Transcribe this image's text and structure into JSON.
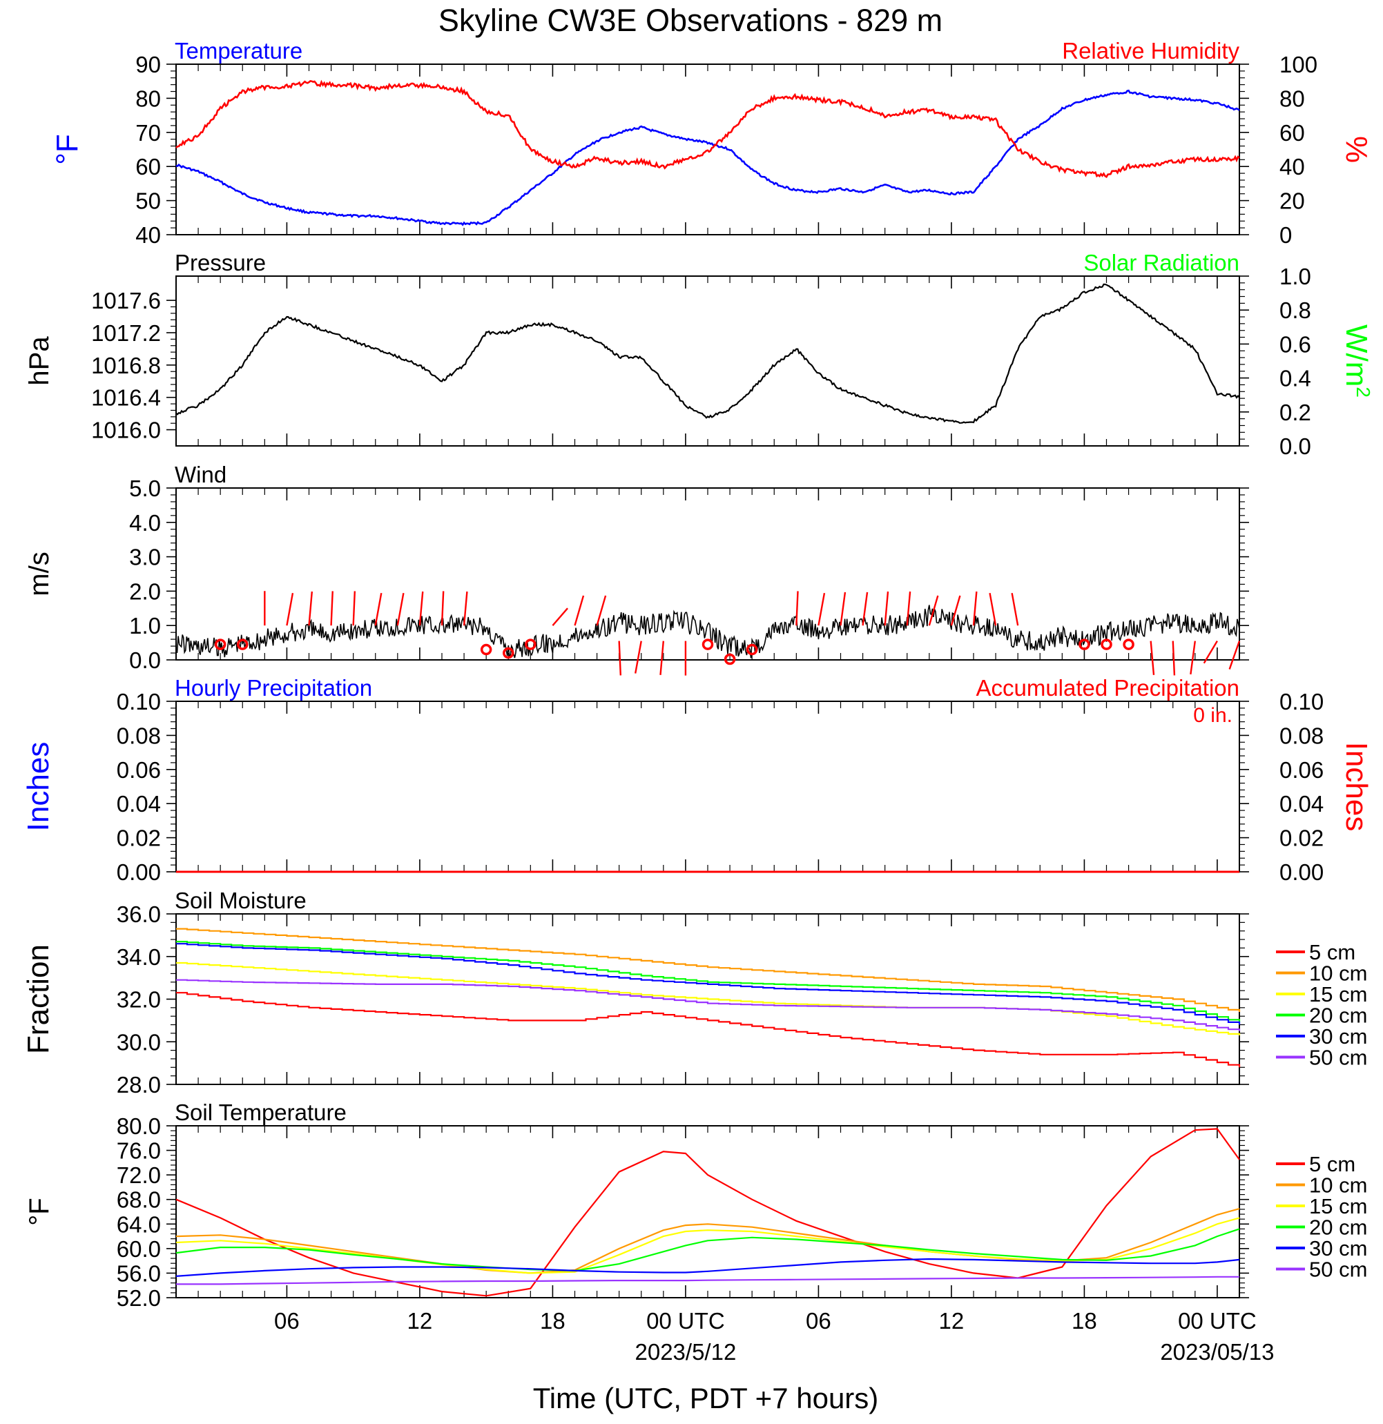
{
  "figure": {
    "title": "Skyline CW3E Observations - 829 m",
    "xlabel": "Time (UTC, PDT +7 hours)",
    "x_ticks": [
      {
        "hour": 6,
        "label": "06"
      },
      {
        "hour": 12,
        "label": "12"
      },
      {
        "hour": 18,
        "label": "18"
      },
      {
        "hour": 24,
        "label": "00 UTC"
      },
      {
        "hour": 30,
        "label": "06"
      },
      {
        "hour": 36,
        "label": "12"
      },
      {
        "hour": 42,
        "label": "18"
      },
      {
        "hour": 48,
        "label": "00 UTC"
      }
    ],
    "x_date_labels": [
      {
        "hour": 24,
        "label": "2023/5/12"
      },
      {
        "hour": 48,
        "label": "2023/05/13"
      }
    ],
    "x_range_hours": [
      1,
      49
    ]
  },
  "colors": {
    "temperature": "#0000ff",
    "humidity": "#ff0000",
    "pressure": "#000000",
    "solar": "#00ff00",
    "wind": "#000000",
    "wind_barb": "#ff0000",
    "hourly_precip": "#0000ff",
    "accum_precip": "#ff0000",
    "depths": [
      "#ff0000",
      "#ff9900",
      "#ffff00",
      "#00ff00",
      "#0000ff",
      "#9933ff"
    ]
  },
  "chart_data": [
    {
      "type": "line",
      "title_left": "Temperature",
      "title_right": "Relative Humidity",
      "ylabel_left": "°F",
      "ylabel_right": "%",
      "ylim_left": [
        40,
        90
      ],
      "ylim_right": [
        0,
        100
      ],
      "yticks_left": [
        "40",
        "50",
        "60",
        "70",
        "80",
        "90"
      ],
      "yticks_right": [
        "0",
        "20",
        "40",
        "60",
        "80",
        "100"
      ],
      "x_hours": [
        1,
        2,
        3,
        4,
        5,
        6,
        7,
        8,
        9,
        10,
        11,
        12,
        13,
        14,
        15,
        16,
        17,
        18,
        19,
        20,
        21,
        22,
        23,
        24,
        25,
        26,
        27,
        28,
        29,
        30,
        31,
        32,
        33,
        34,
        35,
        36,
        37,
        38,
        39,
        40,
        41,
        42,
        43,
        44,
        45,
        46,
        47,
        48,
        49
      ],
      "series": [
        {
          "name": "Temperature",
          "axis": "left",
          "values": [
            60.5,
            58.5,
            55.5,
            52,
            49.5,
            47.8,
            46.5,
            46,
            45.5,
            45.5,
            44.8,
            44,
            43.3,
            43.2,
            43.5,
            48,
            53,
            58,
            63.5,
            67.5,
            70,
            71.5,
            69.5,
            68,
            67,
            65,
            59,
            55,
            53,
            52.5,
            53.5,
            52.5,
            54.5,
            52.5,
            53,
            52,
            52.5,
            60,
            68,
            72,
            77,
            79.5,
            81,
            82,
            80.5,
            80,
            79.5,
            78.5,
            76.5
          ]
        },
        {
          "name": "Relative Humidity",
          "axis": "right",
          "values": [
            52,
            58,
            74,
            84,
            86.5,
            87,
            89,
            88,
            87.5,
            86,
            87.5,
            87.5,
            86.5,
            84,
            72,
            70,
            50,
            43,
            40,
            45,
            42,
            43,
            40,
            44,
            49,
            60,
            74,
            80,
            81,
            79,
            78,
            75,
            70,
            72,
            73,
            69,
            69,
            67,
            50,
            43,
            38,
            36,
            35,
            40,
            41,
            43,
            44,
            44,
            45
          ]
        }
      ]
    },
    {
      "type": "line",
      "title_left": "Pressure",
      "title_right": "Solar Radiation",
      "ylabel_left": "hPa",
      "ylabel_right": "W/m",
      "ylabel_right_sup": "2",
      "ylim_left": [
        1015.8,
        1017.9
      ],
      "ylim_right": [
        0,
        1
      ],
      "yticks_left": [
        "1016.0",
        "1016.4",
        "1016.8",
        "1017.2",
        "1017.6"
      ],
      "yticks_right": [
        "0.0",
        "0.2",
        "0.4",
        "0.6",
        "0.8",
        "1.0"
      ],
      "x_hours": [
        1,
        2,
        3,
        4,
        5,
        6,
        7,
        8,
        9,
        10,
        11,
        12,
        13,
        14,
        15,
        16,
        17,
        18,
        19,
        20,
        21,
        22,
        23,
        24,
        25,
        26,
        27,
        28,
        29,
        30,
        31,
        32,
        33,
        34,
        35,
        36,
        37,
        38,
        39,
        40,
        41,
        42,
        43,
        44,
        45,
        46,
        47,
        48,
        49
      ],
      "series": [
        {
          "name": "Pressure",
          "axis": "left",
          "values": [
            1016.2,
            1016.3,
            1016.5,
            1016.8,
            1017.2,
            1017.4,
            1017.3,
            1017.2,
            1017.1,
            1017.0,
            1016.9,
            1016.8,
            1016.6,
            1016.8,
            1017.2,
            1017.2,
            1017.3,
            1017.3,
            1017.2,
            1017.1,
            1016.9,
            1016.9,
            1016.6,
            1016.3,
            1016.15,
            1016.25,
            1016.5,
            1016.8,
            1017.0,
            1016.7,
            1016.5,
            1016.4,
            1016.3,
            1016.2,
            1016.15,
            1016.1,
            1016.1,
            1016.3,
            1017.0,
            1017.4,
            1017.5,
            1017.7,
            1017.8,
            1017.6,
            1017.4,
            1017.2,
            1017.0,
            1016.45,
            1016.4
          ]
        }
      ]
    },
    {
      "type": "line",
      "title_left": "Wind",
      "ylabel_left": "m/s",
      "ylim_left": [
        0,
        5
      ],
      "yticks_left": [
        "0.0",
        "1.0",
        "2.0",
        "3.0",
        "4.0",
        "5.0"
      ],
      "x_hours": [
        1,
        2,
        3,
        4,
        5,
        6,
        7,
        8,
        9,
        10,
        11,
        12,
        13,
        14,
        15,
        16,
        17,
        18,
        19,
        20,
        21,
        22,
        23,
        24,
        25,
        26,
        27,
        28,
        29,
        30,
        31,
        32,
        33,
        34,
        35,
        36,
        37,
        38,
        39,
        40,
        41,
        42,
        43,
        44,
        45,
        46,
        47,
        48,
        49
      ],
      "series": [
        {
          "name": "Wind Speed",
          "values": [
            0.5,
            0.4,
            0.35,
            0.5,
            0.6,
            0.75,
            0.85,
            0.8,
            0.85,
            0.9,
            1.0,
            1.05,
            1.0,
            1.0,
            0.9,
            0.3,
            0.4,
            0.5,
            0.7,
            0.9,
            1.1,
            1.0,
            1.1,
            1.1,
            0.8,
            0.4,
            0.3,
            0.9,
            1.0,
            0.9,
            0.9,
            1.0,
            1.0,
            1.1,
            1.3,
            1.1,
            1.0,
            0.9,
            0.6,
            0.5,
            0.7,
            0.6,
            0.8,
            0.9,
            1.0,
            1.1,
            1.0,
            1.1,
            0.9
          ]
        }
      ],
      "calm_hours": [
        3,
        4,
        15,
        16,
        17,
        25,
        26,
        27,
        42,
        43,
        44
      ],
      "barbs": [
        {
          "hour": 5,
          "dir": 360
        },
        {
          "hour": 6,
          "dir": 20
        },
        {
          "hour": 7,
          "dir": 10
        },
        {
          "hour": 8,
          "dir": 5
        },
        {
          "hour": 9,
          "dir": 5
        },
        {
          "hour": 10,
          "dir": 20
        },
        {
          "hour": 11,
          "dir": 20
        },
        {
          "hour": 12,
          "dir": 10
        },
        {
          "hour": 13,
          "dir": 5
        },
        {
          "hour": 14,
          "dir": 10
        },
        {
          "hour": 18,
          "dir": 60
        },
        {
          "hour": 19,
          "dir": 30
        },
        {
          "hour": 20,
          "dir": 30
        },
        {
          "hour": 21,
          "dir": 175
        },
        {
          "hour": 22,
          "dir": 200
        },
        {
          "hour": 23,
          "dir": 190
        },
        {
          "hour": 24,
          "dir": 180
        },
        {
          "hour": 29,
          "dir": 5
        },
        {
          "hour": 30,
          "dir": 20
        },
        {
          "hour": 31,
          "dir": 15
        },
        {
          "hour": 32,
          "dir": 15
        },
        {
          "hour": 33,
          "dir": 10
        },
        {
          "hour": 34,
          "dir": 10
        },
        {
          "hour": 35,
          "dir": 30
        },
        {
          "hour": 36,
          "dir": 30
        },
        {
          "hour": 37,
          "dir": 10
        },
        {
          "hour": 38,
          "dir": 340
        },
        {
          "hour": 39,
          "dir": 340
        },
        {
          "hour": 45,
          "dir": 170
        },
        {
          "hour": 46,
          "dir": 175
        },
        {
          "hour": 47,
          "dir": 195
        },
        {
          "hour": 48,
          "dir": 230
        },
        {
          "hour": 49,
          "dir": 215
        }
      ]
    },
    {
      "type": "line",
      "title_left": "Hourly Precipitation",
      "title_right": "Accumulated Precipitation",
      "total_label": "0 in.",
      "ylabel_left": "Inches",
      "ylabel_right": "Inches",
      "ylim_left": [
        0,
        0.1
      ],
      "ylim_right": [
        0,
        0.1
      ],
      "yticks_left": [
        "0.00",
        "0.02",
        "0.04",
        "0.06",
        "0.08",
        "0.10"
      ],
      "yticks_right": [
        "0.00",
        "0.02",
        "0.04",
        "0.06",
        "0.08",
        "0.10"
      ],
      "x_hours": [
        1,
        49
      ],
      "series": [
        {
          "name": "Accumulated Precipitation",
          "axis": "right",
          "values": [
            0,
            0
          ]
        }
      ]
    },
    {
      "type": "line",
      "title_left": "Soil Moisture",
      "ylabel_left": "Fraction",
      "ylim_left": [
        28,
        36
      ],
      "yticks_left": [
        "28.0",
        "30.0",
        "32.0",
        "34.0",
        "36.0"
      ],
      "legend_labels": [
        "5 cm",
        "10 cm",
        "15 cm",
        "20 cm",
        "30 cm",
        "50 cm"
      ],
      "x_hours": [
        1,
        4,
        7,
        10,
        13,
        16,
        19,
        22,
        25,
        28,
        31,
        34,
        37,
        40,
        43,
        46,
        49
      ],
      "series": [
        {
          "name": "5 cm",
          "values": [
            32.3,
            31.9,
            31.6,
            31.4,
            31.2,
            31.0,
            31.0,
            31.4,
            31.0,
            30.6,
            30.2,
            29.9,
            29.6,
            29.4,
            29.4,
            29.5,
            28.8
          ]
        },
        {
          "name": "10 cm",
          "values": [
            35.3,
            35.1,
            34.9,
            34.7,
            34.5,
            34.3,
            34.1,
            33.8,
            33.5,
            33.3,
            33.1,
            32.9,
            32.7,
            32.6,
            32.3,
            32.0,
            31.4
          ]
        },
        {
          "name": "15 cm",
          "values": [
            33.7,
            33.5,
            33.3,
            33.1,
            32.9,
            32.7,
            32.5,
            32.2,
            32.0,
            31.8,
            31.7,
            31.6,
            31.6,
            31.5,
            31.2,
            30.7,
            30.3
          ]
        },
        {
          "name": "20 cm",
          "values": [
            34.7,
            34.5,
            34.4,
            34.2,
            34.0,
            33.8,
            33.5,
            33.1,
            32.8,
            32.7,
            32.6,
            32.5,
            32.4,
            32.3,
            32.1,
            31.7,
            30.9
          ]
        },
        {
          "name": "30 cm",
          "values": [
            34.6,
            34.4,
            34.3,
            34.1,
            33.9,
            33.6,
            33.2,
            32.9,
            32.7,
            32.5,
            32.4,
            32.3,
            32.2,
            32.1,
            31.9,
            31.5,
            30.8
          ]
        },
        {
          "name": "50 cm",
          "values": [
            32.9,
            32.8,
            32.75,
            32.7,
            32.7,
            32.6,
            32.4,
            32.1,
            31.8,
            31.7,
            31.65,
            31.6,
            31.6,
            31.5,
            31.3,
            31.0,
            30.5
          ]
        }
      ]
    },
    {
      "type": "line",
      "title_left": "Soil Temperature",
      "ylabel_left": "°F",
      "ylim_left": [
        52,
        80
      ],
      "yticks_left": [
        "52.0",
        "56.0",
        "60.0",
        "64.0",
        "68.0",
        "72.0",
        "76.0",
        "80.0"
      ],
      "legend_labels": [
        "5 cm",
        "10 cm",
        "15 cm",
        "20 cm",
        "30 cm",
        "50 cm"
      ],
      "x_hours": [
        1,
        3,
        5,
        7,
        9,
        11,
        13,
        15,
        17,
        19,
        21,
        23,
        24,
        25,
        27,
        29,
        31,
        33,
        35,
        37,
        39,
        41,
        43,
        45,
        47,
        48,
        49
      ],
      "series": [
        {
          "name": "5 cm",
          "values": [
            68,
            65,
            61.5,
            58.5,
            56,
            54.5,
            53,
            52.3,
            53.5,
            63.5,
            72.5,
            75.8,
            75.5,
            72,
            68,
            64.5,
            62,
            59.5,
            57.5,
            56,
            55.2,
            57,
            67,
            75,
            79.3,
            79.5,
            74.5
          ]
        },
        {
          "name": "10 cm",
          "values": [
            62,
            62.2,
            61.5,
            60.5,
            59.5,
            58.5,
            57.5,
            56.5,
            56,
            56.5,
            60,
            63,
            63.8,
            64,
            63.5,
            62.5,
            61.5,
            60.5,
            59.5,
            58.8,
            58.2,
            58,
            58.5,
            61,
            64,
            65.5,
            66.5
          ]
        },
        {
          "name": "15 cm",
          "values": [
            61,
            61.3,
            60.8,
            60,
            59.2,
            58.3,
            57.4,
            56.6,
            56,
            56.2,
            59,
            62,
            62.8,
            63,
            62.8,
            62,
            61.2,
            60.3,
            59.5,
            58.8,
            58.3,
            58,
            58.2,
            60,
            62.5,
            64,
            65
          ]
        },
        {
          "name": "20 cm",
          "values": [
            59.3,
            60.2,
            60.2,
            59.8,
            59,
            58.3,
            57.5,
            57,
            56.6,
            56.4,
            57.5,
            59.5,
            60.5,
            61.3,
            61.8,
            61.5,
            61,
            60.5,
            59.8,
            59.2,
            58.7,
            58.2,
            58.1,
            58.8,
            60.5,
            62,
            63.2
          ]
        },
        {
          "name": "30 cm",
          "values": [
            55.5,
            56,
            56.4,
            56.7,
            56.9,
            57,
            57,
            56.9,
            56.7,
            56.4,
            56.2,
            56.1,
            56.1,
            56.3,
            56.8,
            57.3,
            57.8,
            58.1,
            58.3,
            58.2,
            58,
            57.8,
            57.7,
            57.6,
            57.6,
            57.8,
            58.2
          ]
        },
        {
          "name": "50 cm",
          "values": [
            54.2,
            54.2,
            54.3,
            54.4,
            54.5,
            54.6,
            54.65,
            54.7,
            54.7,
            54.75,
            54.8,
            54.8,
            54.8,
            54.85,
            54.9,
            54.95,
            55,
            55.05,
            55.1,
            55.15,
            55.2,
            55.2,
            55.25,
            55.3,
            55.35,
            55.4,
            55.4
          ]
        }
      ]
    }
  ]
}
